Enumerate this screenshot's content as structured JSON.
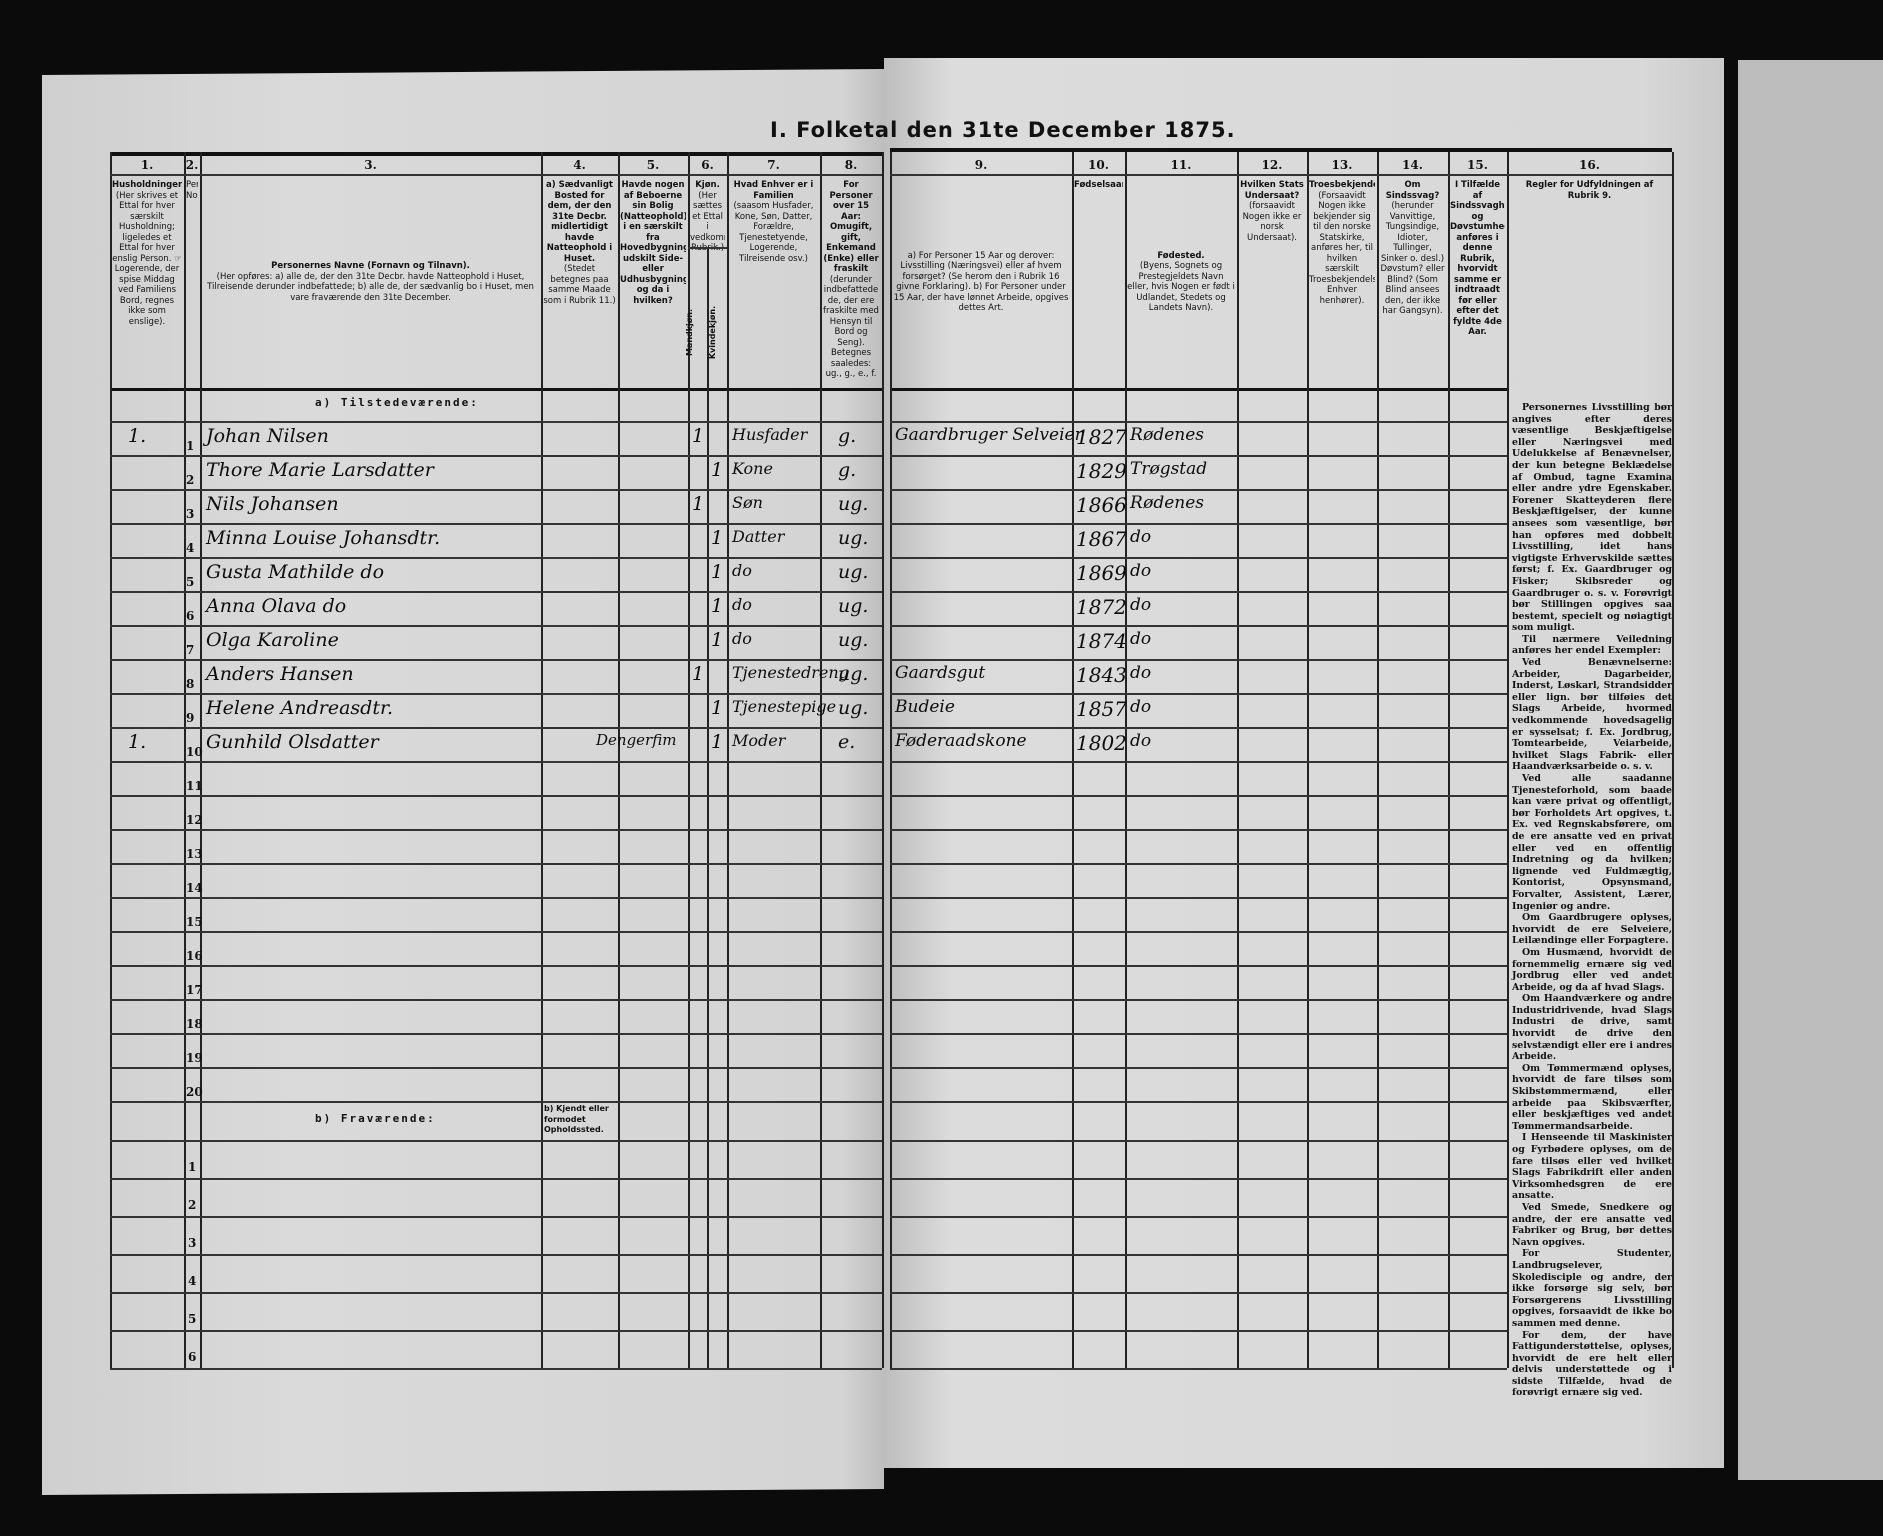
{
  "title": "I. Folketal den 31te December 1875.",
  "columns_left": [
    {
      "num": "1.",
      "head": "Husholdninger.",
      "sub": "(Her skrives et Ettal for hver særskilt Husholdning; ligeledes et Ettal for hver enslig Person. ☞ Logerende, der spise Middag ved Familiens Bord, regnes ikke som enslige)."
    },
    {
      "num": "2.",
      "head": "",
      "sub": "Personernes No."
    },
    {
      "num": "3.",
      "head": "Personernes Navne (Fornavn og Tilnavn).",
      "sub": "(Her opføres: a) alle de, der den 31te Decbr. havde Natteophold i Huset, Tilreisende derunder indbefattede; b) alle de, der sædvanlig bo i Huset, men vare fraværende den 31te December."
    },
    {
      "num": "4.",
      "head": "a) Sædvanligt Bosted for dem, der den 31te Decbr. midlertidigt havde Natteophold i Huset.",
      "sub": "(Stedet betegnes paa samme Maade som i Rubrik 11.)"
    },
    {
      "num": "5.",
      "head": "Havde nogen af Beboerne sin Bolig (Natteophold) i en særskilt fra Hovedbygningen udskilt Side- eller Udhusbygning? og da i hvilken?",
      "sub": ""
    },
    {
      "num": "6.",
      "head": "Kjøn.",
      "sub": "(Her sættes et Ettal i vedkommende Rubrik.)",
      "m": "Mandkjøn.",
      "f": "Kvindekjøn."
    },
    {
      "num": "7.",
      "head": "Hvad Enhver er i Familien",
      "sub": "(saasom Husfader, Kone, Søn, Datter, Forældre, Tjenestetyende, Logerende, Tilreisende osv.)"
    },
    {
      "num": "8.",
      "head": "For Personer over 15 Aar: Omugift, gift, Enkemand (Enke) eller fraskilt",
      "sub": "(derunder indbefattede de, der ere fraskilte med Hensyn til Bord og Seng). Betegnes saaledes: ug., g., e., f."
    }
  ],
  "columns_right": [
    {
      "num": "9.",
      "head": "",
      "sub": "a) For Personer 15 Aar og derover: Livsstilling (Næringsvei) eller af hvem forsørget? (Se herom den i Rubrik 16 givne Forklaring). b) For Personer under 15 Aar, der have lønnet Arbeide, opgives dettes Art."
    },
    {
      "num": "10.",
      "head": "Fødselsaar.",
      "sub": ""
    },
    {
      "num": "11.",
      "head": "Fødested.",
      "sub": "(Byens, Sognets og Prestegjeldets Navn eller, hvis Nogen er født i Udlandet, Stedets og Landets Navn)."
    },
    {
      "num": "12.",
      "head": "Hvilken Stats Undersaat?",
      "sub": "(forsaavidt Nogen ikke er norsk Undersaat)."
    },
    {
      "num": "13.",
      "head": "Troesbekjendelse.",
      "sub": "(Forsaavidt Nogen ikke bekjender sig til den norske Statskirke, anføres her, til hvilken særskilt Troesbekjendelse Enhver henhører)."
    },
    {
      "num": "14.",
      "head": "Om Sindssvag?",
      "sub": "(herunder Vanvittige, Tungsindige, Idioter, Tullinger, Sinker o. desl.) Døvstum? eller Blind? (Som Blind ansees den, der ikke har Gangsyn)."
    },
    {
      "num": "15.",
      "head": "I Tilfælde af Sindssvaghed og Døvstumhed anføres i denne Rubrik, hvorvidt samme er indtraadt før eller efter det fyldte 4de Aar.",
      "sub": ""
    },
    {
      "num": "16.",
      "head": "Regler for Udfyldningen af Rubrik 9.",
      "sub": ""
    }
  ],
  "sections": {
    "present": "a) Tilstedeværende:",
    "absent": "b) Fraværende:",
    "absent_col4": "b) Kjendt eller formodet Opholdssted."
  },
  "present_row_numbers": [
    "1",
    "2",
    "3",
    "4",
    "5",
    "6",
    "7",
    "8",
    "9",
    "10",
    "11",
    "12",
    "13",
    "14",
    "15",
    "16",
    "17",
    "18",
    "19",
    "20"
  ],
  "absent_row_numbers": [
    "1",
    "2",
    "3",
    "4",
    "5",
    "6"
  ],
  "persons": [
    {
      "household": "1.",
      "name": "Johan Nilsen",
      "usual_residence": "",
      "male": "1",
      "female": "",
      "family_role": "Husfader",
      "marital": "g.",
      "occupation": "Gaardbruger Selveier",
      "birth_year": "1827",
      "birthplace": "Rødenes"
    },
    {
      "household": "",
      "name": "Thore Marie Larsdatter",
      "usual_residence": "",
      "male": "",
      "female": "1",
      "family_role": "Kone",
      "marital": "g.",
      "occupation": "",
      "birth_year": "1829",
      "birthplace": "Trøgstad"
    },
    {
      "household": "",
      "name": "Nils Johansen",
      "usual_residence": "",
      "male": "1",
      "female": "",
      "family_role": "Søn",
      "marital": "ug.",
      "occupation": "",
      "birth_year": "1866",
      "birthplace": "Rødenes"
    },
    {
      "household": "",
      "name": "Minna Louise Johansdtr.",
      "usual_residence": "",
      "male": "",
      "female": "1",
      "family_role": "Datter",
      "marital": "ug.",
      "occupation": "",
      "birth_year": "1867",
      "birthplace": "do"
    },
    {
      "household": "",
      "name": "Gusta Mathilde do",
      "usual_residence": "",
      "male": "",
      "female": "1",
      "family_role": "do",
      "marital": "ug.",
      "occupation": "",
      "birth_year": "1869",
      "birthplace": "do"
    },
    {
      "household": "",
      "name": "Anna Olava do",
      "usual_residence": "",
      "male": "",
      "female": "1",
      "family_role": "do",
      "marital": "ug.",
      "occupation": "",
      "birth_year": "1872",
      "birthplace": "do"
    },
    {
      "household": "",
      "name": "Olga Karoline",
      "usual_residence": "",
      "male": "",
      "female": "1",
      "family_role": "do",
      "marital": "ug.",
      "occupation": "",
      "birth_year": "1874",
      "birthplace": "do"
    },
    {
      "household": "",
      "name": "Anders Hansen",
      "usual_residence": "",
      "male": "1",
      "female": "",
      "family_role": "Tjenestedreng",
      "marital": "ug.",
      "occupation": "Gaardsgut",
      "birth_year": "1843",
      "birthplace": "do"
    },
    {
      "household": "",
      "name": "Helene Andreasdtr.",
      "usual_residence": "",
      "male": "",
      "female": "1",
      "family_role": "Tjenestepige",
      "marital": "ug.",
      "occupation": "Budeie",
      "birth_year": "1857",
      "birthplace": "do"
    },
    {
      "household": "1.",
      "name": "Gunhild Olsdatter",
      "usual_residence": "Dengerfim",
      "male": "",
      "female": "1",
      "family_role": "Moder",
      "marital": "e.",
      "occupation": "Føderaadskone",
      "birth_year": "1802",
      "birthplace": "do"
    }
  ],
  "rules_text": [
    "Personernes Livsstilling bør angives efter deres væsentlige Beskjæftigelse eller Næringsvei med Udelukkelse af Benævnelser, der kun betegne Beklædelse af Ombud, tagne Examina eller andre ydre Egenskaber. Forener Skatteyderen flere Beskjæftigelser, der kunne ansees som væsentlige, bør han opføres med dobbelt Livsstilling, idet hans vigtigste Erhvervskilde sættes først; f. Ex. Gaardbruger og Fisker; Skibsreder og Gaardbruger o. s. v. Forøvrigt bør Stillingen opgives saa bestemt, specielt og nøiagtigt som muligt.",
    "Til nærmere Veiledning anføres her endel Exempler:",
    "Ved Benævnelserne: Arbeider, Dagarbeider, Inderst, Løskarl, Strandsidder eller lign. bør tilføies det Slags Arbeide, hvormed vedkommende hovedsagelig er sysselsat; f. Ex. Jordbrug, Tomtearbeide, Veiarbeide, hvilket Slags Fabrik- eller Haandværksarbeide o. s. v.",
    "Ved alle saadanne Tjenesteforhold, som baade kan være privat og offentligt, bør Forholdets Art opgives, t. Ex. ved Regnskabsførere, om de ere ansatte ved en privat eller ved en offentlig Indretning og da hvilken; lignende ved Fuldmægtig, Kontorist, Opsynsmand, Forvalter, Assistent, Lærer, Ingeniør og andre.",
    "Om Gaardbrugere oplyses, hvorvidt de ere Selveiere, Leilændinge eller Forpagtere.",
    "Om Husmænd, hvorvidt de fornemmelig ernære sig ved Jordbrug eller ved andet Arbeide, og da af hvad Slags.",
    "Om Haandværkere og andre Industridrivende, hvad Slags Industri de drive, samt hvorvidt de drive den selvstændigt eller ere i andres Arbeide.",
    "Om Tømmermænd oplyses, hvorvidt de fare tilsøs som Skibstømmermænd, eller arbeide paa Skibsværfter, eller beskjæftiges ved andet Tømmermandsarbeide.",
    "I Henseende til Maskinister og Fyrbødere oplyses, om de fare tilsøs eller ved hvilket Slags Fabrikdrift eller anden Virksomhedsgren de ere ansatte.",
    "Ved Smede, Snedkere og andre, der ere ansatte ved Fabriker og Brug, bør dettes Navn opgives.",
    "For Studenter, Landbrugselever, Skoledisciple og andre, der ikke forsørge sig selv, bør Forsørgerens Livsstilling opgives, forsaavidt de ikke bo sammen med denne.",
    "For dem, der have Fattigunderstøttelse, oplyses, hvorvidt de ere helt eller delvis understøttede og i sidste Tilfælde, hvad de forøvrigt ernære sig ved."
  ],
  "colors": {
    "paper": "#d6d6d6",
    "ink": "#111111",
    "background": "#0b0b0b"
  }
}
